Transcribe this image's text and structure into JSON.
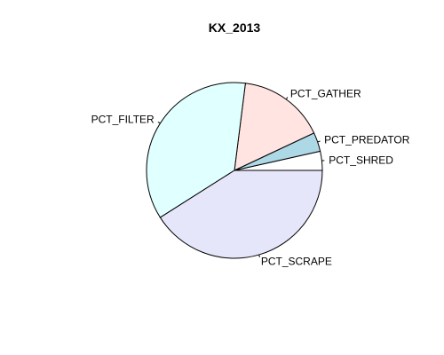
{
  "chart_data": {
    "type": "pie",
    "title": "KX_2013",
    "start_angle_deg": 0,
    "direction": "counterclockwise",
    "slices": [
      {
        "label": "PCT_SHRED",
        "value": 3.5,
        "color": "#ffffff"
      },
      {
        "label": "PCT_PREDATOR",
        "value": 3.5,
        "color": "#add8e6"
      },
      {
        "label": "PCT_GATHER",
        "value": 16.0,
        "color": "#ffe4e1"
      },
      {
        "label": "PCT_FILTER",
        "value": 36.0,
        "color": "#e0ffff"
      },
      {
        "label": "PCT_SCRAPE",
        "value": 41.0,
        "color": "#e6e6fa"
      }
    ]
  }
}
